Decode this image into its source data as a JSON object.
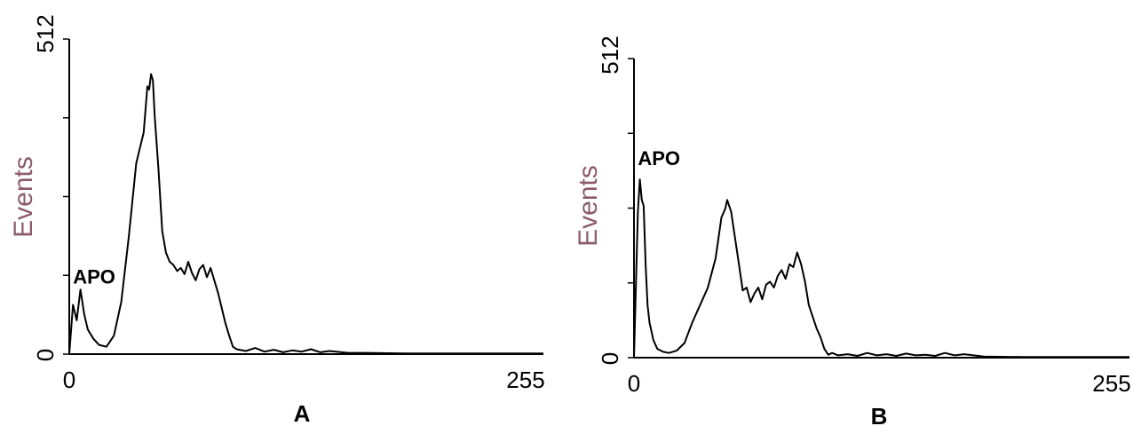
{
  "colors": {
    "axis_title": "#8b5a6b",
    "line": "#000000",
    "background": "#ffffff"
  },
  "chart_data": [
    {
      "type": "line",
      "panel_label": "A",
      "ylabel": "Events",
      "xlabel": "",
      "xlim": [
        0,
        255
      ],
      "ylim": [
        0,
        512
      ],
      "x_tick_labels": [
        "0",
        "255"
      ],
      "y_tick_labels": [
        "0",
        "512"
      ],
      "y_minor_ticks": [
        128,
        256,
        384
      ],
      "annotation": {
        "text": "APO",
        "x": 2,
        "y": 115
      },
      "series": [
        {
          "x": [
            0,
            2,
            4,
            6,
            8,
            10,
            13,
            16,
            20,
            24,
            28,
            32,
            36,
            38,
            40,
            42,
            43,
            44,
            45,
            46,
            48,
            50,
            52,
            54,
            56,
            58,
            60,
            62,
            64,
            66,
            68,
            70,
            72,
            74,
            76,
            78,
            80,
            82,
            84,
            86,
            88,
            90,
            95,
            100,
            105,
            110,
            115,
            120,
            125,
            130,
            135,
            140,
            150,
            160,
            180,
            200,
            220,
            255
          ],
          "y": [
            0,
            80,
            55,
            105,
            65,
            40,
            25,
            15,
            12,
            30,
            85,
            190,
            310,
            335,
            360,
            435,
            430,
            455,
            445,
            385,
            300,
            200,
            165,
            150,
            145,
            135,
            140,
            130,
            150,
            132,
            120,
            138,
            145,
            125,
            140,
            120,
            100,
            75,
            50,
            30,
            12,
            8,
            5,
            10,
            4,
            7,
            3,
            6,
            4,
            8,
            3,
            5,
            2,
            2,
            1,
            1,
            1,
            1
          ]
        }
      ]
    },
    {
      "type": "line",
      "panel_label": "B",
      "ylabel": "Events",
      "xlabel": "",
      "xlim": [
        0,
        255
      ],
      "ylim": [
        0,
        512
      ],
      "x_tick_labels": [
        "0",
        "255"
      ],
      "y_tick_labels": [
        "0",
        "512"
      ],
      "y_minor_ticks": [
        128,
        256,
        384
      ],
      "annotation": {
        "text": "APO",
        "x": 2,
        "y": 330
      },
      "series": [
        {
          "x": [
            0,
            2,
            3,
            4,
            5,
            6,
            7,
            8,
            9,
            10,
            12,
            15,
            18,
            22,
            26,
            30,
            34,
            38,
            42,
            45,
            47,
            48,
            49,
            50,
            52,
            54,
            56,
            58,
            60,
            62,
            64,
            66,
            68,
            70,
            72,
            74,
            76,
            78,
            80,
            82,
            84,
            86,
            88,
            90,
            92,
            94,
            96,
            98,
            100,
            102,
            105,
            110,
            115,
            120,
            125,
            130,
            135,
            140,
            145,
            150,
            155,
            160,
            165,
            170,
            180,
            200,
            255
          ],
          "y": [
            0,
            250,
            305,
            270,
            260,
            160,
            90,
            60,
            45,
            30,
            15,
            10,
            8,
            12,
            25,
            60,
            90,
            120,
            170,
            240,
            255,
            270,
            260,
            250,
            205,
            160,
            115,
            120,
            95,
            110,
            120,
            100,
            125,
            130,
            120,
            140,
            150,
            135,
            160,
            155,
            180,
            160,
            130,
            90,
            70,
            50,
            35,
            15,
            5,
            8,
            4,
            6,
            3,
            8,
            4,
            6,
            3,
            7,
            4,
            5,
            3,
            8,
            4,
            6,
            2,
            1,
            1
          ]
        }
      ]
    }
  ]
}
